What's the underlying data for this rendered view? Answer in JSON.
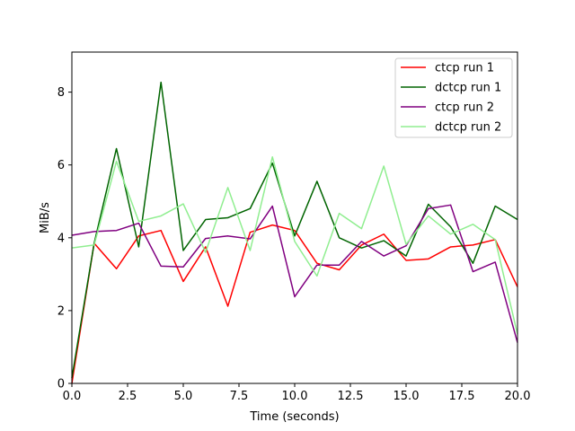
{
  "chart_data": {
    "type": "line",
    "title": "",
    "xlabel": "Time (seconds)",
    "ylabel": "MiB/s",
    "xlim": [
      0,
      20
    ],
    "ylim": [
      0,
      9.1
    ],
    "xticks": [
      0,
      2.5,
      5,
      7.5,
      10,
      12.5,
      15,
      17.5,
      20
    ],
    "xtick_labels": [
      "0.0",
      "2.5",
      "5.0",
      "7.5",
      "10.0",
      "12.5",
      "15.0",
      "17.5",
      "20.0"
    ],
    "yticks": [
      0,
      2,
      4,
      6,
      8
    ],
    "ytick_labels": [
      "0",
      "2",
      "4",
      "6",
      "8"
    ],
    "grid": false,
    "legend_position": "top-right",
    "x": [
      0,
      1,
      2,
      3,
      4,
      5,
      6,
      7,
      8,
      9,
      10,
      11,
      12,
      13,
      14,
      15,
      16,
      17,
      18,
      19,
      20
    ],
    "series": [
      {
        "name": "ctcp run 1",
        "color": "#ff0000",
        "values": [
          0.0,
          3.85,
          3.15,
          4.05,
          4.2,
          2.8,
          3.75,
          2.12,
          4.15,
          4.35,
          4.2,
          3.3,
          3.12,
          3.8,
          4.1,
          3.38,
          3.42,
          3.75,
          3.8,
          3.95,
          2.65
        ]
      },
      {
        "name": "dctcp run 1",
        "color": "#006400",
        "values": [
          0.15,
          3.85,
          6.45,
          3.75,
          8.27,
          3.65,
          4.5,
          4.55,
          4.8,
          6.05,
          4.05,
          5.55,
          4.0,
          3.72,
          3.92,
          3.5,
          4.92,
          4.3,
          3.3,
          4.87,
          4.5
        ]
      },
      {
        "name": "ctcp run 2",
        "color": "#800080",
        "values": [
          4.07,
          4.17,
          4.2,
          4.4,
          3.22,
          3.2,
          3.98,
          4.05,
          3.97,
          4.87,
          2.38,
          3.25,
          3.25,
          3.9,
          3.5,
          3.78,
          4.8,
          4.9,
          3.07,
          3.33,
          1.12
        ]
      },
      {
        "name": "dctcp run 2",
        "color": "#90ee90",
        "values": [
          3.72,
          3.8,
          6.1,
          4.45,
          4.6,
          4.93,
          3.6,
          5.38,
          3.65,
          6.22,
          3.9,
          2.95,
          4.67,
          4.25,
          5.97,
          3.82,
          4.6,
          4.1,
          4.37,
          3.95,
          1.35
        ]
      }
    ]
  }
}
